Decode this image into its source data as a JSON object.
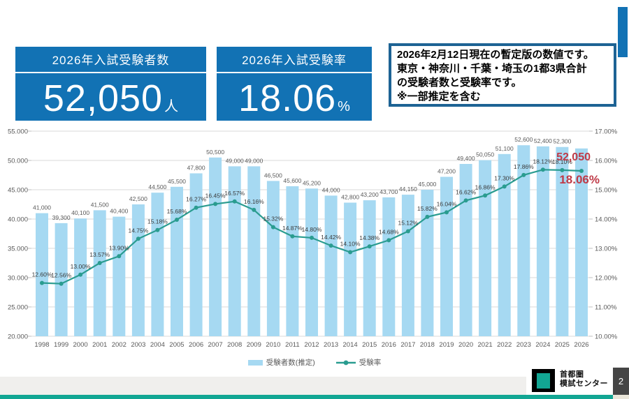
{
  "header": {
    "stat_boxes": [
      {
        "title": "2026年入試受験者数",
        "value": "52,050",
        "unit": "人"
      },
      {
        "title": "2026年入試受験率",
        "value": "18.06",
        "unit": "%"
      }
    ],
    "note_lines": [
      "2026年2月12日現在の暫定版の数値です。",
      "東京・神奈川・千葉・埼玉の1都3県合計",
      "の受験者数と受験率です。",
      "※一部推定を含む"
    ]
  },
  "chart_data": {
    "type": "bar+line",
    "categories": [
      1998,
      1999,
      2000,
      2001,
      2002,
      2003,
      2004,
      2005,
      2006,
      2007,
      2008,
      2009,
      2010,
      2011,
      2012,
      2013,
      2014,
      2015,
      2016,
      2017,
      2018,
      2019,
      2020,
      2021,
      2022,
      2023,
      2024,
      2025,
      2026
    ],
    "series": [
      {
        "name": "受験者数(推定)",
        "type": "bar",
        "values": [
          41000,
          39300,
          40100,
          41500,
          40400,
          42500,
          44500,
          45500,
          47800,
          50500,
          49000,
          49000,
          46500,
          45600,
          45200,
          44000,
          42800,
          43200,
          43700,
          44150,
          45000,
          47200,
          49400,
          50050,
          51100,
          52600,
          52400,
          52300,
          52050
        ]
      },
      {
        "name": "受験率",
        "type": "line",
        "values": [
          12.6,
          12.56,
          13.0,
          13.57,
          13.9,
          14.75,
          15.18,
          15.68,
          16.27,
          16.45,
          16.57,
          16.16,
          15.32,
          14.87,
          14.8,
          14.42,
          14.1,
          14.38,
          14.68,
          15.12,
          15.82,
          16.04,
          16.62,
          16.86,
          17.3,
          17.86,
          18.12,
          18.1,
          18.06
        ]
      }
    ],
    "left_axis": {
      "min": 20000,
      "max": 55000,
      "step": 5000
    },
    "right_axis": {
      "min": 10,
      "max": 20,
      "step": 1
    },
    "highlight": {
      "year": 2026,
      "count_label": "52,050",
      "rate_label": "18.06%",
      "color": "#bf3a47"
    },
    "colors": {
      "bar": "#a6d9f2",
      "line": "#2a9c90",
      "grid": "#d9d9d9",
      "axis_text": "#595959",
      "bar_label": "#595959",
      "pct_label": "#3a3a3a"
    },
    "legend_position": "bottom",
    "grid": true
  },
  "legend": {
    "bar_label": "受験者数(推定)",
    "line_label": "受験率"
  },
  "footer": {
    "brand_line1": "首都圏",
    "brand_line2": "模試センター",
    "page_number": "2"
  },
  "accent_colors": {
    "header_blue": "#1272b4",
    "teal": "#12a693",
    "red": "#bf3a47"
  }
}
